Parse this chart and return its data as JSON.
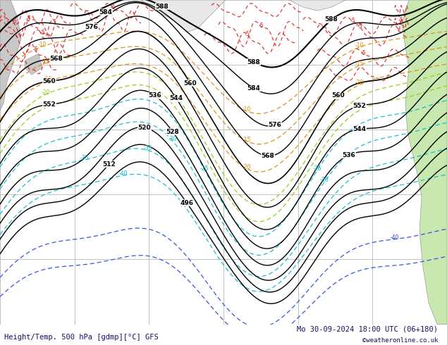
{
  "title_left": "Height/Temp. 500 hPa [gdmp][°C] GFS",
  "title_right": "Mo 30-09-2024 18:00 UTC (06+180)",
  "copyright": "©weatheronline.co.uk",
  "bg_color": "#ffffff",
  "map_bg": "#f0f0f0",
  "ocean_color": "#ffffff",
  "land_color": "#e8e8e8",
  "green_land_color": "#c8e8b0",
  "gray_land_color": "#c8c8c8",
  "grid_color": "#aaaaaa",
  "z500_color": "#000000",
  "temp_red_color": "#dd2222",
  "temp_orange_color": "#dd8800",
  "temp_cyan_color": "#00bbcc",
  "temp_green_color": "#44cc44",
  "temp_blue_color": "#2244dd",
  "temp_yelgreen_color": "#88cc00",
  "label_fontsize": 7,
  "title_fontsize": 7.5,
  "figsize": [
    6.34,
    4.9
  ],
  "dpi": 100
}
